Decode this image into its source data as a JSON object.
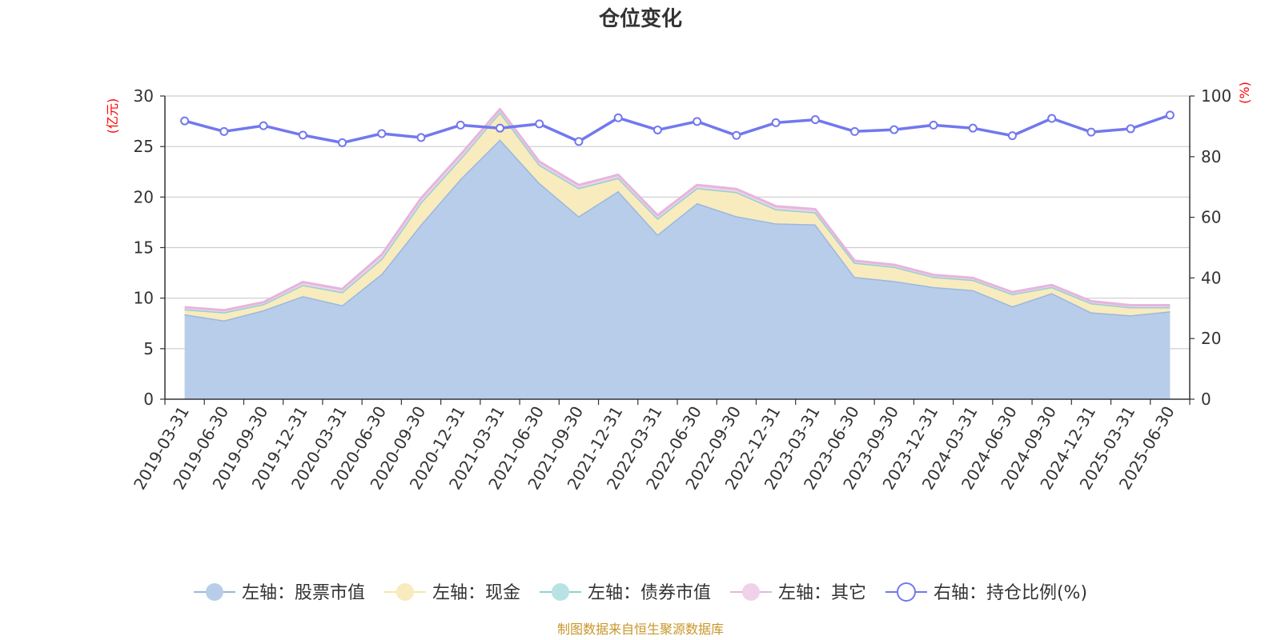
{
  "chart_data": {
    "type": "area",
    "title": "仓位变化",
    "left_unit": "(亿元)",
    "right_unit": "(%)",
    "x": [
      "2019-03-31",
      "2019-06-30",
      "2019-09-30",
      "2019-12-31",
      "2020-03-31",
      "2020-06-30",
      "2020-09-30",
      "2020-12-31",
      "2021-03-31",
      "2021-06-30",
      "2021-09-30",
      "2021-12-31",
      "2022-03-31",
      "2022-06-30",
      "2022-09-30",
      "2022-12-31",
      "2023-03-31",
      "2023-06-30",
      "2023-09-30",
      "2023-12-31",
      "2024-03-31",
      "2024-06-30",
      "2024-09-30",
      "2024-12-31",
      "2025-03-31",
      "2025-06-30"
    ],
    "left_axis": {
      "min": 0,
      "max": 30,
      "ticks": [
        "0",
        "5",
        "10",
        "15",
        "20",
        "25",
        "30"
      ],
      "tick_values": [
        0,
        5,
        10,
        15,
        20,
        25,
        30
      ]
    },
    "right_axis": {
      "min": 0,
      "max": 100,
      "ticks": [
        "0",
        "20",
        "40",
        "60",
        "80",
        "100"
      ],
      "tick_values": [
        0,
        20,
        40,
        60,
        80,
        100
      ]
    },
    "grid": true,
    "stacked": true,
    "legend_position": "bottom",
    "series": [
      {
        "name": "左轴：股票市值",
        "axis": "left",
        "kind": "area",
        "color": "#9ab8e0",
        "fill": "#b8cdea",
        "values": [
          8.4,
          7.8,
          8.8,
          10.2,
          9.3,
          12.4,
          17.3,
          21.8,
          25.7,
          21.4,
          18.1,
          20.6,
          16.3,
          19.4,
          18.1,
          17.4,
          17.3,
          12.1,
          11.7,
          11.1,
          10.8,
          9.2,
          10.5,
          8.6,
          8.3,
          8.7
        ]
      },
      {
        "name": "左轴：现金",
        "axis": "left",
        "kind": "area",
        "color": "#f7e7a6",
        "fill": "#f8ebbd",
        "values": [
          0.5,
          0.8,
          0.6,
          1.1,
          1.3,
          1.5,
          2.2,
          2.0,
          2.7,
          1.8,
          2.8,
          1.3,
          1.6,
          1.5,
          2.4,
          1.4,
          1.2,
          1.4,
          1.4,
          1.0,
          1.0,
          1.2,
          0.6,
          0.9,
          0.8,
          0.4
        ]
      },
      {
        "name": "左轴：债券市值",
        "axis": "left",
        "kind": "area",
        "color": "#92d1d3",
        "fill": "#b8e2e3",
        "values": [
          0,
          0,
          0,
          0,
          0,
          0,
          0,
          0,
          0,
          0,
          0,
          0,
          0,
          0,
          0,
          0,
          0,
          0,
          0,
          0,
          0,
          0,
          0,
          0,
          0,
          0
        ]
      },
      {
        "name": "左轴：其它",
        "axis": "left",
        "kind": "area",
        "color": "#e6b5dc",
        "fill": "#efd2ea",
        "values": [
          0.2,
          0.2,
          0.2,
          0.3,
          0.3,
          0.4,
          0.4,
          0.4,
          0.3,
          0.3,
          0.3,
          0.3,
          0.3,
          0.3,
          0.3,
          0.3,
          0.3,
          0.2,
          0.2,
          0.2,
          0.2,
          0.2,
          0.2,
          0.2,
          0.2,
          0.2
        ]
      },
      {
        "name": "右轴：持仓比例(%)",
        "axis": "right",
        "kind": "line",
        "color": "#7278ee",
        "values": [
          91.8,
          88.3,
          90.2,
          87.1,
          84.6,
          87.6,
          86.3,
          90.4,
          89.4,
          90.8,
          85.0,
          92.8,
          88.8,
          91.6,
          87.0,
          91.2,
          92.2,
          88.3,
          88.9,
          90.4,
          89.4,
          86.9,
          92.6,
          88.1,
          89.2,
          93.7
        ]
      }
    ]
  },
  "footer": {
    "source": "制图数据来自恒生聚源数据库"
  }
}
